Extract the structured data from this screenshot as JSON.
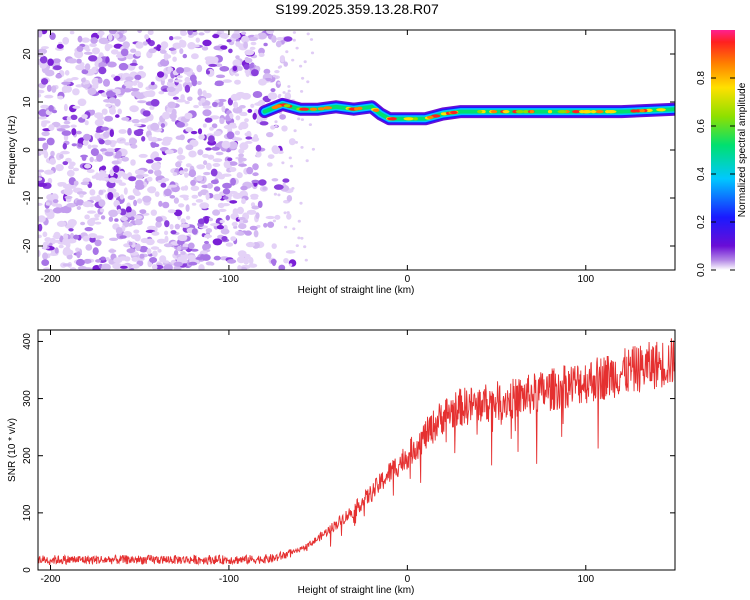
{
  "title": "S199.2025.359.13.28.R07",
  "colors": {
    "spectrogram_low": "#7a1fd6",
    "snr_line": "#e53030",
    "axis": "#000000"
  },
  "chart_data": [
    {
      "type": "heatmap",
      "name": "spectrogram",
      "xlabel": "Height of straight line (km)",
      "ylabel": "Frequency (Hz)",
      "xlim": [
        -207,
        150
      ],
      "ylim": [
        -25,
        25
      ],
      "xticks": [
        -200,
        -100,
        0,
        100
      ],
      "yticks": [
        -20,
        -10,
        0,
        10,
        20
      ],
      "noise_region_x": [
        -207,
        -75
      ],
      "tone_frequency_track": {
        "x": [
          -80,
          -70,
          -60,
          -50,
          -40,
          -30,
          -20,
          -15,
          -10,
          0,
          10,
          20,
          30,
          50,
          80,
          100,
          120,
          150
        ],
        "y": [
          8,
          9.5,
          8.5,
          8.5,
          9,
          8.5,
          9,
          7.5,
          6.5,
          6.5,
          6.5,
          7.5,
          8,
          8,
          8,
          8,
          8,
          8.5
        ]
      },
      "colorbar": {
        "label": "Normalized spectral amplitude",
        "ticks": [
          0.0,
          0.2,
          0.4,
          0.6,
          0.8
        ],
        "range": [
          0,
          1
        ]
      }
    },
    {
      "type": "line",
      "name": "snr",
      "xlabel": "Height of straight line (km)",
      "ylabel": "SNR (10 * v/v)",
      "xlim": [
        -207,
        150
      ],
      "ylim": [
        0,
        420
      ],
      "xticks": [
        -200,
        -100,
        0,
        100
      ],
      "yticks": [
        0,
        100,
        200,
        300,
        400
      ],
      "series": [
        {
          "name": "SNR",
          "x": [
            -207,
            -180,
            -150,
            -120,
            -90,
            -75,
            -60,
            -50,
            -40,
            -30,
            -20,
            -10,
            0,
            10,
            20,
            30,
            40,
            60,
            80,
            100,
            120,
            140,
            150
          ],
          "y": [
            18,
            18,
            18,
            18,
            18,
            20,
            35,
            55,
            80,
            105,
            135,
            170,
            200,
            235,
            270,
            285,
            290,
            300,
            315,
            330,
            345,
            360,
            365
          ]
        }
      ]
    }
  ]
}
